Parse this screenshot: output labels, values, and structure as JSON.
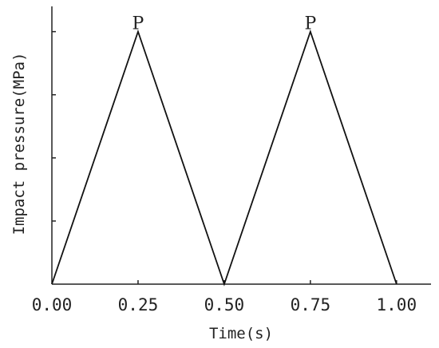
{
  "chart_data": {
    "type": "line",
    "title": "",
    "xlabel": "Time(s)",
    "ylabel": "Impact pressure(MPa)",
    "xlim": [
      0,
      1.1
    ],
    "ylim": [
      0,
      1.1
    ],
    "x_ticks": [
      "0.00",
      "0.25",
      "0.50",
      "0.75",
      "1.00"
    ],
    "x_tick_values": [
      0,
      0.25,
      0.5,
      0.75,
      1.0
    ],
    "y_tick_values": [
      0,
      0.25,
      0.5,
      0.75,
      1.0
    ],
    "grid": false,
    "series": [
      {
        "x": [
          0,
          0.25,
          0.5,
          0.75,
          1.0
        ],
        "y": [
          0,
          1,
          0,
          1,
          0
        ]
      }
    ],
    "annotations": [
      {
        "text": "P",
        "x": 0.25,
        "y": 1
      },
      {
        "text": "P",
        "x": 0.75,
        "y": 1
      }
    ],
    "colors": {
      "line": "#111111",
      "axis": "#222222"
    }
  }
}
